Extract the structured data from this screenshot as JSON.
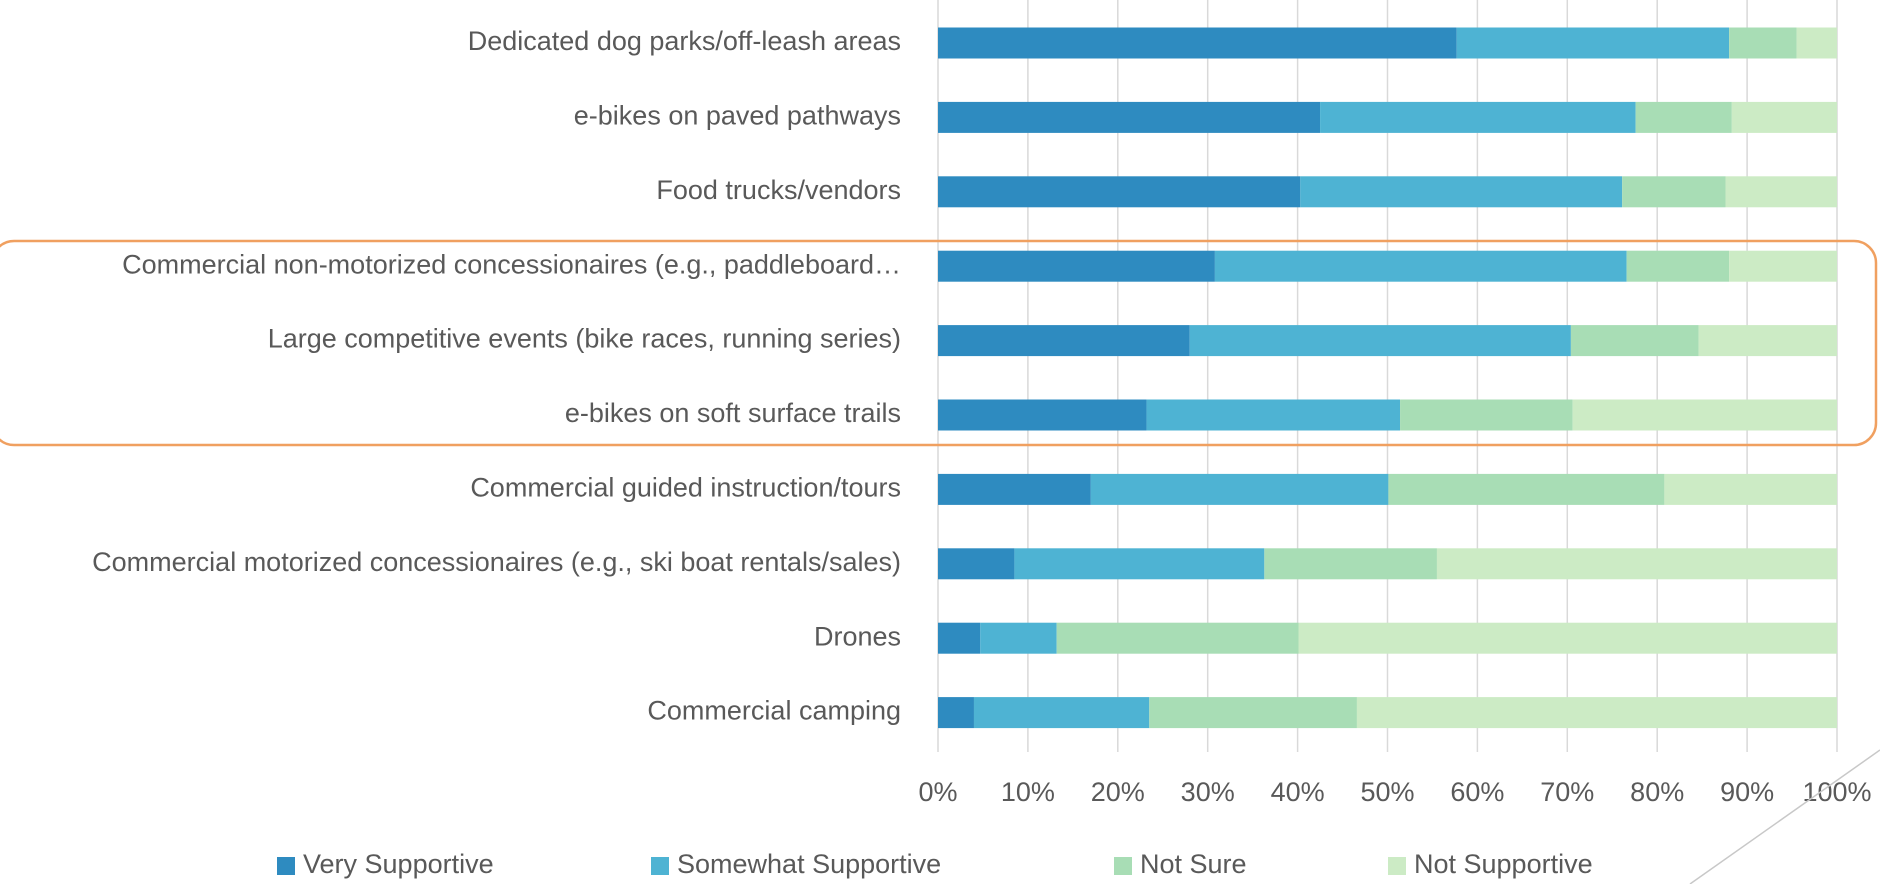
{
  "chart_data": {
    "type": "stacked-barh",
    "categories": [
      "Dedicated dog parks/off-leash areas",
      "e-bikes on paved pathways",
      "Food trucks/vendors",
      "Commercial non-motorized concessionaires (e.g., paddleboard…",
      "Large competitive events (bike races, running series)",
      "e-bikes on soft surface trails",
      "Commercial guided instruction/tours",
      "Commercial motorized concessionaires (e.g., ski boat rentals/sales)",
      "Drones",
      "Commercial camping"
    ],
    "series": [
      {
        "name": "Very Supportive",
        "color": "#2e8bc0",
        "values": [
          57.7,
          42.5,
          40.3,
          30.8,
          28.0,
          23.2,
          17.0,
          8.5,
          4.7,
          4.0
        ]
      },
      {
        "name": "Somewhat Supportive",
        "color": "#4eb3d3",
        "values": [
          30.3,
          35.1,
          35.8,
          45.8,
          42.4,
          28.2,
          33.1,
          27.8,
          8.5,
          19.5
        ]
      },
      {
        "name": "Not Sure",
        "color": "#a8ddb5",
        "values": [
          7.5,
          10.7,
          11.5,
          11.4,
          14.2,
          19.2,
          30.7,
          19.2,
          26.9,
          23.1
        ]
      },
      {
        "name": "Not Supportive",
        "color": "#ccebc5",
        "values": [
          4.5,
          11.7,
          12.4,
          12.0,
          15.4,
          29.4,
          19.2,
          44.5,
          59.9,
          53.4
        ]
      }
    ],
    "xlim": [
      0,
      100
    ],
    "xticks": [
      {
        "value": 0,
        "label": "0%"
      },
      {
        "value": 10,
        "label": "10%"
      },
      {
        "value": 20,
        "label": "20%"
      },
      {
        "value": 30,
        "label": "30%"
      },
      {
        "value": 40,
        "label": "40%"
      },
      {
        "value": 50,
        "label": "50%"
      },
      {
        "value": 60,
        "label": "60%"
      },
      {
        "value": 70,
        "label": "70%"
      },
      {
        "value": 80,
        "label": "80%"
      },
      {
        "value": 90,
        "label": "90%"
      },
      {
        "value": 100,
        "label": "100%"
      }
    ],
    "grid": true,
    "legend": "bottom"
  }
}
